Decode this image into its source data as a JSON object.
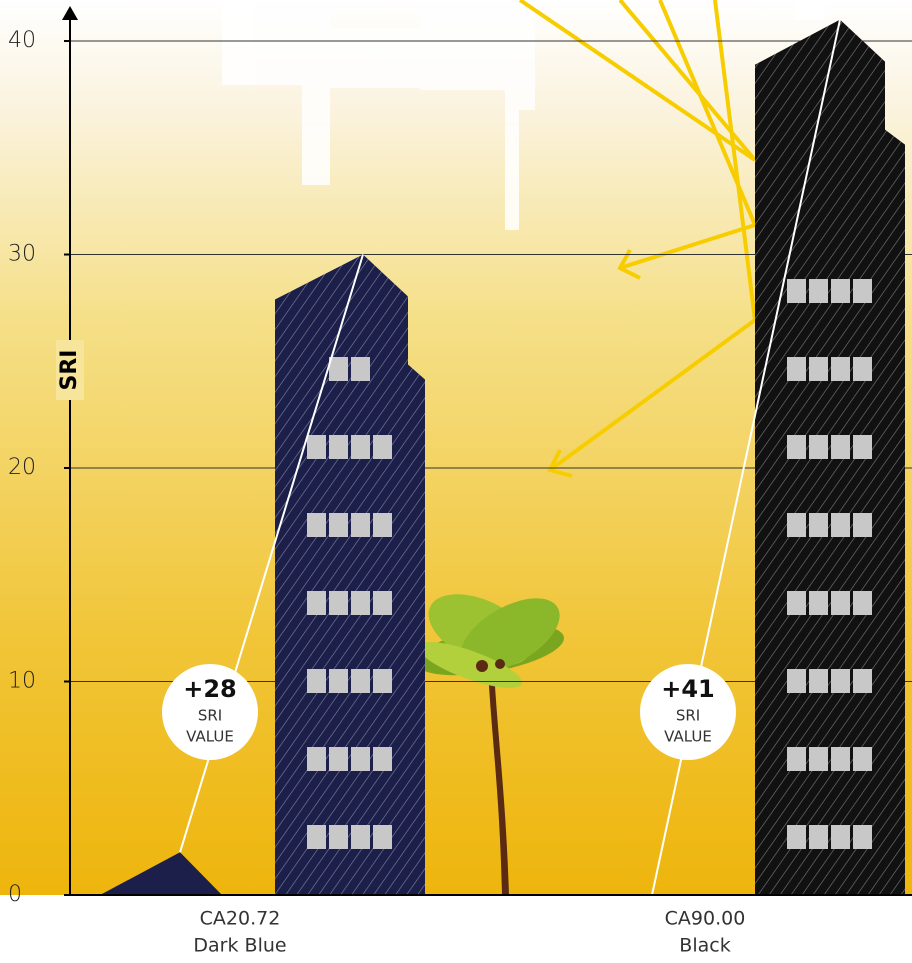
{
  "chart_data": {
    "type": "bar",
    "y_label": "SRI",
    "categories": [
      "CA20.72",
      "CA90.00"
    ],
    "category_names": [
      "Dark Blue",
      "Black"
    ],
    "baseline": [
      2,
      0
    ],
    "values": [
      28,
      41
    ],
    "value_labels": [
      "+28",
      "+41"
    ],
    "value_caption": [
      "SRI",
      "VALUE"
    ],
    "colors": [
      "#1c1f4a",
      "#111111"
    ],
    "ylim": [
      0,
      41.5
    ],
    "yticks": [
      0,
      10,
      20,
      30,
      40
    ],
    "grid": true
  }
}
